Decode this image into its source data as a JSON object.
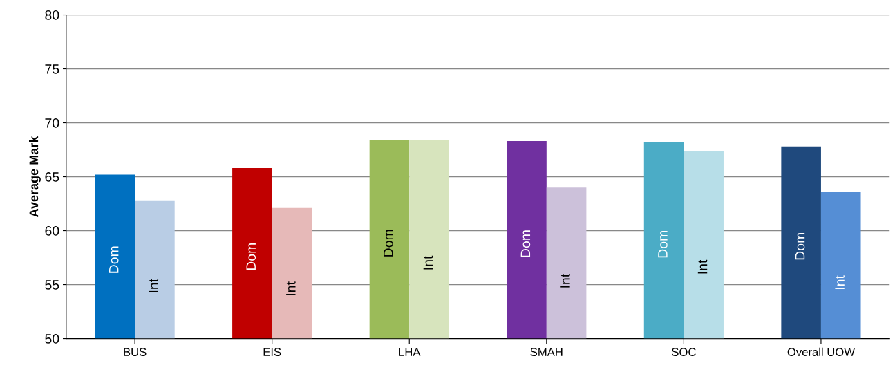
{
  "chart_data": {
    "type": "bar",
    "ylabel": "Average Mark",
    "categories": [
      "BUS",
      "EIS",
      "LHA",
      "SMAH",
      "SOC",
      "Overall UOW"
    ],
    "series": [
      {
        "name": "Dom",
        "values": [
          65.2,
          65.8,
          68.4,
          68.3,
          68.2,
          67.8
        ],
        "colors": [
          "#0070c0",
          "#c00000",
          "#9bbb59",
          "#7030a0",
          "#4bacc6",
          "#1f497d"
        ]
      },
      {
        "name": "Int",
        "values": [
          62.8,
          62.1,
          68.4,
          64.0,
          67.4,
          63.6
        ],
        "colors": [
          "#b9cde5",
          "#e6b9b8",
          "#d7e4bd",
          "#ccc1da",
          "#b7dee8",
          "#558ed5"
        ]
      }
    ],
    "ylim": [
      50,
      80
    ],
    "yticks": [
      50,
      55,
      60,
      65,
      70,
      75,
      80
    ],
    "grid": "y",
    "legend": false
  }
}
